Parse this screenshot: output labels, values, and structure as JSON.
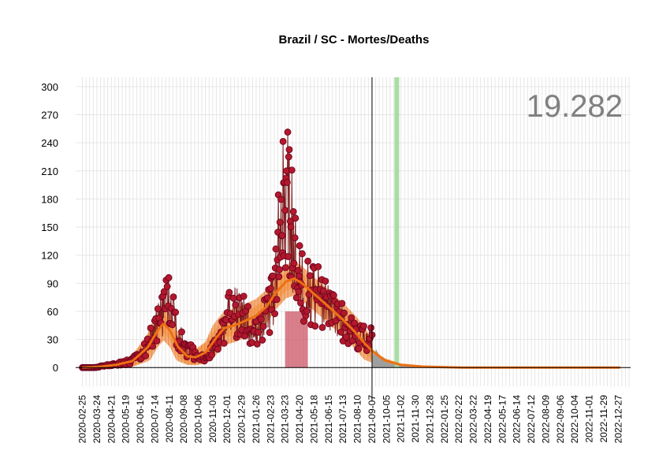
{
  "chart_data": {
    "type": "line",
    "title": "Brazil / SC - Mortes/Deaths",
    "total_deaths_label": "19.282",
    "xlabel": "",
    "ylabel": "",
    "ylim": [
      -20,
      310
    ],
    "yticks": [
      0,
      30,
      60,
      90,
      120,
      150,
      180,
      210,
      240,
      270,
      300
    ],
    "x_tick_labels": [
      "2020-02-25",
      "2020-03-24",
      "2020-04-21",
      "2020-05-19",
      "2020-06-16",
      "2020-07-14",
      "2020-08-11",
      "2020-09-08",
      "2020-10-06",
      "2020-11-03",
      "2020-12-01",
      "2020-12-29",
      "2021-01-26",
      "2021-02-23",
      "2021-03-23",
      "2021-04-20",
      "2021-05-18",
      "2021-06-15",
      "2021-07-13",
      "2021-08-10",
      "2021-09-07",
      "2021-10-05",
      "2021-11-02",
      "2021-11-30",
      "2021-12-28",
      "2022-01-25",
      "2022-02-22",
      "2022-03-22",
      "2022-04-19",
      "2022-05-17",
      "2022-06-14",
      "2022-07-12",
      "2022-08-09",
      "2022-09-06",
      "2022-10-04",
      "2022-11-01",
      "2022-11-29",
      "2022-12-27"
    ],
    "x_range": [
      "2020-02-12",
      "2023-01-20"
    ],
    "grid": true,
    "last_data_date": "2021-09-07",
    "highlight_date": "2021-10-25",
    "highlight_period": [
      "2021-03-23",
      "2021-05-06"
    ],
    "daily_deaths_anchors": [
      [
        "2020-02-25",
        0
      ],
      [
        "2020-03-20",
        0
      ],
      [
        "2020-04-10",
        2
      ],
      [
        "2020-05-05",
        4
      ],
      [
        "2020-05-25",
        6
      ],
      [
        "2020-06-15",
        14
      ],
      [
        "2020-07-05",
        28
      ],
      [
        "2020-07-20",
        48
      ],
      [
        "2020-08-01",
        62
      ],
      [
        "2020-08-08",
        75
      ],
      [
        "2020-08-14",
        70
      ],
      [
        "2020-08-25",
        40
      ],
      [
        "2020-09-10",
        22
      ],
      [
        "2020-09-30",
        14
      ],
      [
        "2020-10-15",
        10
      ],
      [
        "2020-11-03",
        18
      ],
      [
        "2020-11-20",
        35
      ],
      [
        "2020-12-01",
        55
      ],
      [
        "2020-12-15",
        60
      ],
      [
        "2020-12-29",
        55
      ],
      [
        "2021-01-15",
        45
      ],
      [
        "2021-01-30",
        42
      ],
      [
        "2021-02-15",
        55
      ],
      [
        "2021-02-28",
        80
      ],
      [
        "2021-03-10",
        130
      ],
      [
        "2021-03-20",
        175
      ],
      [
        "2021-03-28",
        195
      ],
      [
        "2021-04-05",
        150
      ],
      [
        "2021-04-15",
        110
      ],
      [
        "2021-04-28",
        85
      ],
      [
        "2021-05-10",
        80
      ],
      [
        "2021-05-25",
        75
      ],
      [
        "2021-06-10",
        65
      ],
      [
        "2021-06-25",
        55
      ],
      [
        "2021-07-10",
        48
      ],
      [
        "2021-07-25",
        42
      ],
      [
        "2021-08-10",
        35
      ],
      [
        "2021-08-25",
        30
      ],
      [
        "2021-09-07",
        30
      ]
    ],
    "trend_anchors": [
      [
        "2020-02-25",
        0
      ],
      [
        "2020-04-01",
        1
      ],
      [
        "2020-05-01",
        3
      ],
      [
        "2020-06-01",
        7
      ],
      [
        "2020-07-01",
        22
      ],
      [
        "2020-07-20",
        40
      ],
      [
        "2020-07-31",
        47
      ],
      [
        "2020-08-12",
        40
      ],
      [
        "2020-08-28",
        22
      ],
      [
        "2020-09-15",
        12
      ],
      [
        "2020-10-01",
        11
      ],
      [
        "2020-10-20",
        16
      ],
      [
        "2020-11-10",
        32
      ],
      [
        "2020-11-25",
        42
      ],
      [
        "2020-12-15",
        45
      ],
      [
        "2021-01-05",
        50
      ],
      [
        "2021-01-25",
        55
      ],
      [
        "2021-02-15",
        65
      ],
      [
        "2021-03-05",
        80
      ],
      [
        "2021-03-25",
        92
      ],
      [
        "2021-04-10",
        95
      ],
      [
        "2021-04-25",
        90
      ],
      [
        "2021-05-15",
        80
      ],
      [
        "2021-06-05",
        70
      ],
      [
        "2021-06-25",
        60
      ],
      [
        "2021-07-15",
        50
      ],
      [
        "2021-08-05",
        38
      ],
      [
        "2021-08-25",
        25
      ],
      [
        "2021-09-07",
        18
      ],
      [
        "2021-10-01",
        8
      ],
      [
        "2021-11-01",
        3
      ],
      [
        "2021-12-15",
        1
      ],
      [
        "2022-03-01",
        0
      ],
      [
        "2022-12-31",
        0
      ]
    ],
    "band_halfwidth": 10,
    "colors": {
      "points": "#b2182b",
      "points_edge": "#67001f",
      "daily_line": "#7f1d1d",
      "trend": "#ec7014",
      "trend_band": "#fe9929",
      "forecast_bars": "#9e9e9e",
      "highlight_bar": "#a1d99b",
      "period_rect": "#cb4a5c",
      "grid": "#e6e6e6"
    }
  }
}
